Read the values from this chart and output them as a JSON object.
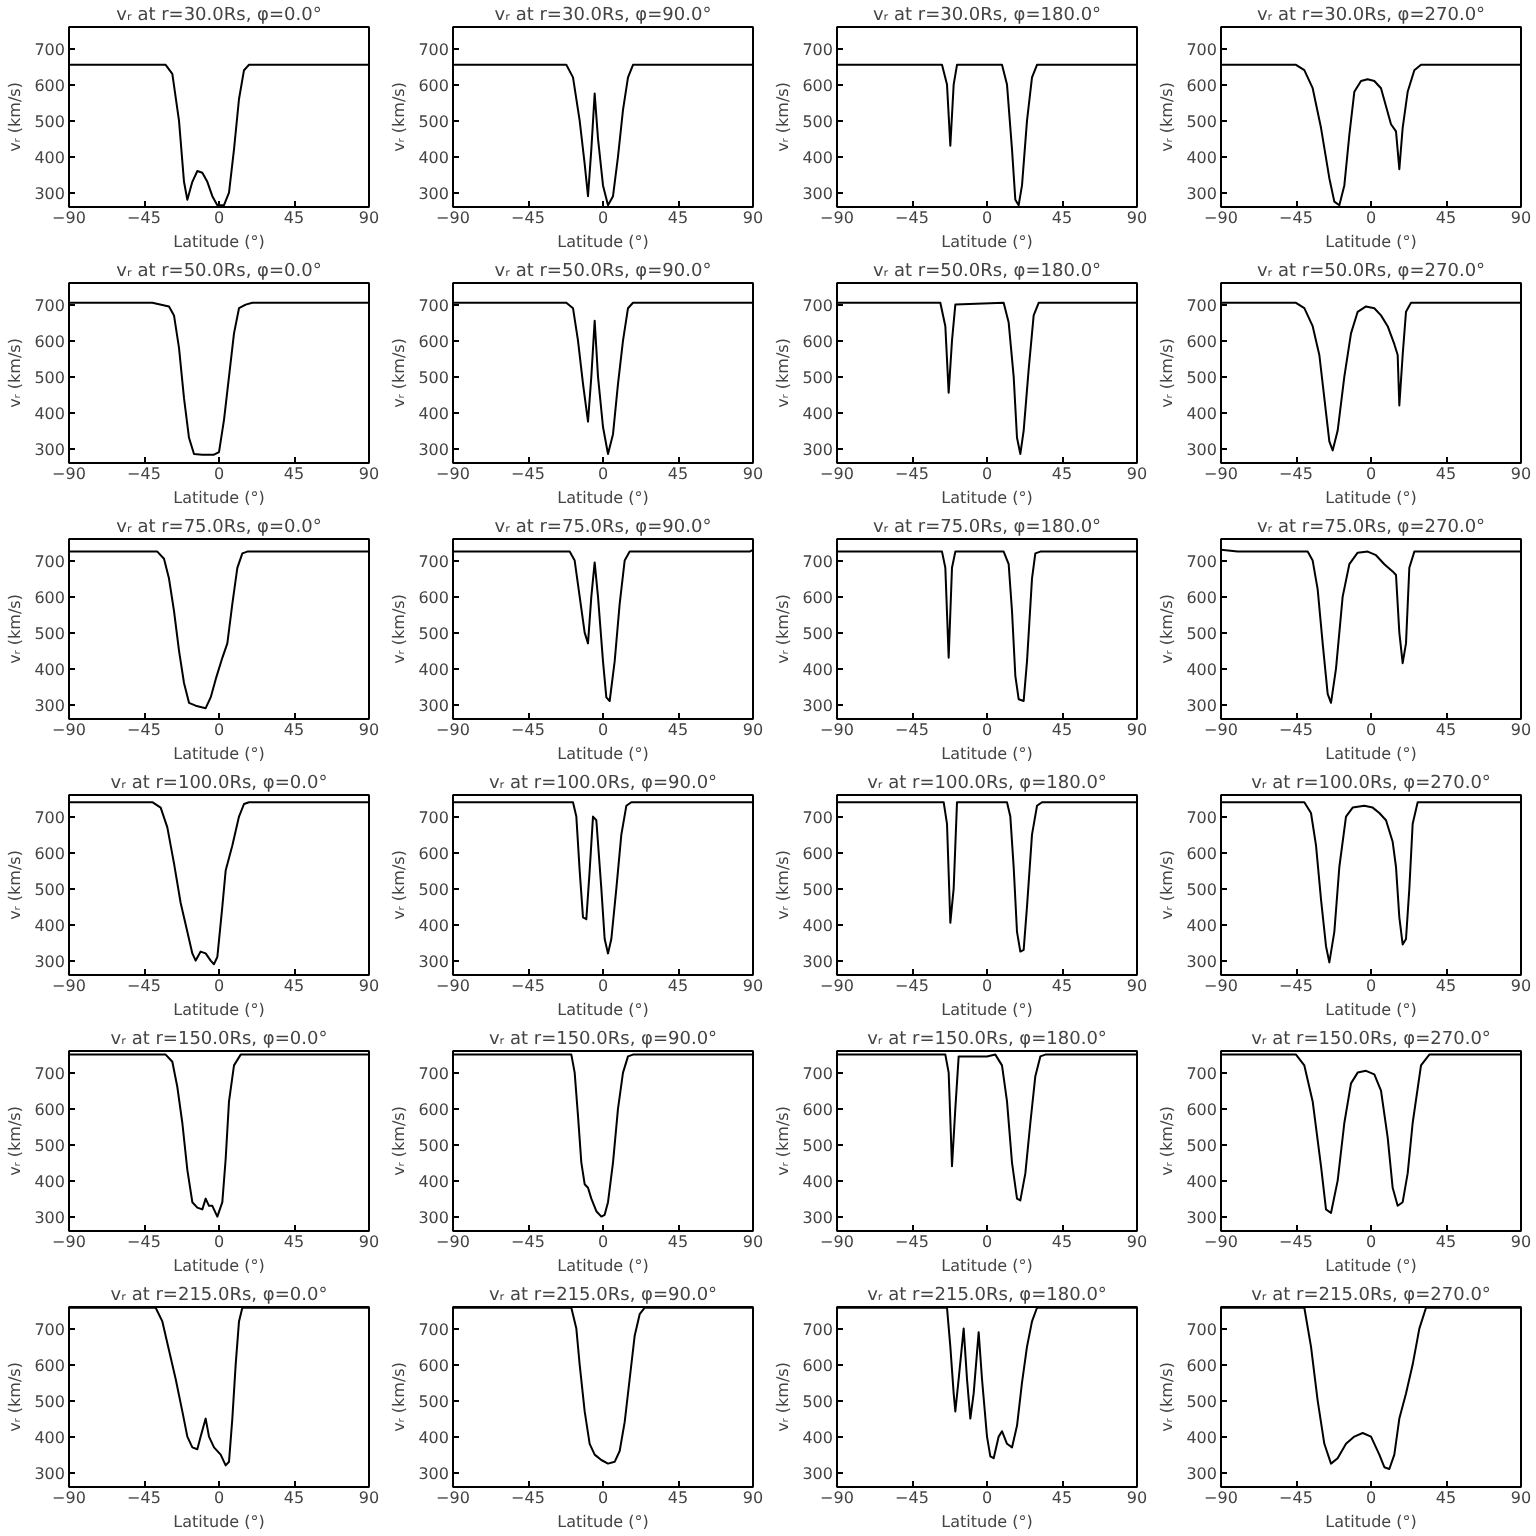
{
  "chart_data": [
    {
      "type": "line",
      "title": "vᵣ at r=30.0Rs, φ=0.0°",
      "xlabel": "Latitude (°)",
      "ylabel": "vᵣ (km/s)",
      "color": "#000000",
      "xlim": [
        -90,
        90
      ],
      "ylim": [
        260,
        760
      ],
      "xticks": [
        -90,
        -45,
        0,
        45,
        90
      ],
      "yticks": [
        300,
        400,
        500,
        600,
        700
      ],
      "x": [
        -90,
        -32,
        -28,
        -24,
        -21,
        -19,
        -16,
        -13,
        -10,
        -7,
        -4,
        -1,
        3,
        6,
        9,
        12,
        15,
        18,
        90
      ],
      "values": [
        655,
        655,
        630,
        500,
        330,
        280,
        330,
        360,
        355,
        330,
        290,
        265,
        265,
        300,
        420,
        560,
        640,
        655,
        655
      ]
    },
    {
      "type": "line",
      "title": "vᵣ at r=30.0Rs, φ=90.0°",
      "xlabel": "Latitude (°)",
      "ylabel": "vᵣ (km/s)",
      "color": "#000000",
      "xlim": [
        -90,
        90
      ],
      "ylim": [
        260,
        760
      ],
      "xticks": [
        -90,
        -45,
        0,
        45,
        90
      ],
      "yticks": [
        300,
        400,
        500,
        600,
        700
      ],
      "x": [
        -90,
        -22,
        -18,
        -14,
        -11,
        -9,
        -7,
        -5,
        -3,
        0,
        3,
        6,
        9,
        12,
        15,
        18,
        90
      ],
      "values": [
        655,
        655,
        620,
        500,
        380,
        290,
        420,
        575,
        450,
        320,
        265,
        290,
        400,
        530,
        620,
        655,
        655
      ]
    },
    {
      "type": "line",
      "title": "vᵣ at r=30.0Rs, φ=180.0°",
      "xlabel": "Latitude (°)",
      "ylabel": "vᵣ (km/s)",
      "color": "#000000",
      "xlim": [
        -90,
        90
      ],
      "ylim": [
        260,
        760
      ],
      "xticks": [
        -90,
        -45,
        0,
        45,
        90
      ],
      "yticks": [
        300,
        400,
        500,
        600,
        700
      ],
      "x": [
        -90,
        -27,
        -24,
        -22,
        -20,
        -18,
        9,
        12,
        15,
        17,
        19,
        21,
        24,
        27,
        30,
        90
      ],
      "values": [
        655,
        655,
        600,
        430,
        600,
        655,
        655,
        600,
        420,
        280,
        265,
        320,
        500,
        620,
        655,
        655
      ]
    },
    {
      "type": "line",
      "title": "vᵣ at r=30.0Rs, φ=270.0°",
      "xlabel": "Latitude (°)",
      "ylabel": "vᵣ (km/s)",
      "color": "#000000",
      "xlim": [
        -90,
        90
      ],
      "ylim": [
        260,
        760
      ],
      "xticks": [
        -90,
        -45,
        0,
        45,
        90
      ],
      "yticks": [
        300,
        400,
        500,
        600,
        700
      ],
      "x": [
        -90,
        -45,
        -40,
        -35,
        -30,
        -25,
        -22,
        -19,
        -16,
        -13,
        -10,
        -6,
        -2,
        2,
        6,
        9,
        12,
        15,
        17,
        19,
        22,
        26,
        30,
        90
      ],
      "values": [
        655,
        655,
        640,
        590,
        480,
        340,
        275,
        265,
        320,
        460,
        580,
        610,
        615,
        610,
        590,
        540,
        490,
        470,
        365,
        480,
        580,
        640,
        655,
        655
      ]
    },
    {
      "type": "line",
      "title": "vᵣ at r=50.0Rs, φ=0.0°",
      "xlabel": "Latitude (°)",
      "ylabel": "vᵣ (km/s)",
      "color": "#000000",
      "xlim": [
        -90,
        90
      ],
      "ylim": [
        260,
        760
      ],
      "xticks": [
        -90,
        -45,
        0,
        45,
        90
      ],
      "yticks": [
        300,
        400,
        500,
        600,
        700
      ],
      "x": [
        -90,
        -40,
        -30,
        -27,
        -24,
        -21,
        -18,
        -15,
        -10,
        -3,
        0,
        3,
        6,
        9,
        12,
        16,
        20,
        90
      ],
      "values": [
        705,
        705,
        695,
        670,
        580,
        440,
        330,
        285,
        283,
        283,
        290,
        380,
        500,
        620,
        690,
        700,
        705,
        705
      ]
    },
    {
      "type": "line",
      "title": "vᵣ at r=50.0Rs, φ=90.0°",
      "xlabel": "Latitude (°)",
      "ylabel": "vᵣ (km/s)",
      "color": "#000000",
      "xlim": [
        -90,
        90
      ],
      "ylim": [
        260,
        760
      ],
      "xticks": [
        -90,
        -45,
        0,
        45,
        90
      ],
      "yticks": [
        300,
        400,
        500,
        600,
        700
      ],
      "x": [
        -90,
        -22,
        -18,
        -15,
        -12,
        -9,
        -7,
        -5,
        -3,
        0,
        3,
        6,
        9,
        12,
        15,
        18,
        90
      ],
      "values": [
        705,
        705,
        690,
        600,
        480,
        375,
        500,
        655,
        500,
        360,
        285,
        340,
        480,
        600,
        690,
        705,
        705
      ]
    },
    {
      "type": "line",
      "title": "vᵣ at r=50.0Rs, φ=180.0°",
      "xlabel": "Latitude (°)",
      "ylabel": "vᵣ (km/s)",
      "color": "#000000",
      "xlim": [
        -90,
        90
      ],
      "ylim": [
        260,
        760
      ],
      "xticks": [
        -90,
        -45,
        0,
        45,
        90
      ],
      "yticks": [
        300,
        400,
        500,
        600,
        700
      ],
      "x": [
        -90,
        -28,
        -25,
        -23,
        -21,
        -19,
        10,
        13,
        16,
        18,
        20,
        22,
        25,
        28,
        31,
        90
      ],
      "values": [
        705,
        705,
        640,
        455,
        600,
        700,
        705,
        650,
        500,
        330,
        285,
        350,
        520,
        670,
        705,
        705
      ]
    },
    {
      "type": "line",
      "title": "vᵣ at r=50.0Rs, φ=270.0°",
      "xlabel": "Latitude (°)",
      "ylabel": "vᵣ (km/s)",
      "color": "#000000",
      "xlim": [
        -90,
        90
      ],
      "ylim": [
        260,
        760
      ],
      "xticks": [
        -90,
        -45,
        0,
        45,
        90
      ],
      "yticks": [
        300,
        400,
        500,
        600,
        700
      ],
      "x": [
        -90,
        -45,
        -40,
        -35,
        -31,
        -28,
        -25,
        -23,
        -20,
        -16,
        -12,
        -8,
        -3,
        2,
        6,
        10,
        14,
        16,
        17,
        19,
        21,
        24,
        90
      ],
      "values": [
        705,
        705,
        690,
        640,
        560,
        440,
        320,
        295,
        350,
        500,
        620,
        680,
        695,
        690,
        670,
        640,
        590,
        560,
        420,
        560,
        680,
        705,
        705
      ]
    },
    {
      "type": "line",
      "title": "vᵣ at r=75.0Rs, φ=0.0°",
      "xlabel": "Latitude (°)",
      "ylabel": "vᵣ (km/s)",
      "color": "#000000",
      "xlim": [
        -90,
        90
      ],
      "ylim": [
        260,
        760
      ],
      "xticks": [
        -90,
        -45,
        0,
        45,
        90
      ],
      "yticks": [
        300,
        400,
        500,
        600,
        700
      ],
      "x": [
        -90,
        -37,
        -33,
        -30,
        -27,
        -24,
        -21,
        -18,
        -14,
        -8,
        -5,
        -2,
        2,
        5,
        8,
        11,
        14,
        17,
        90
      ],
      "values": [
        725,
        725,
        705,
        650,
        560,
        450,
        360,
        305,
        297,
        290,
        320,
        370,
        430,
        470,
        580,
        680,
        720,
        725,
        725
      ]
    },
    {
      "type": "line",
      "title": "vᵣ at r=75.0Rs, φ=90.0°",
      "xlabel": "Latitude (°)",
      "ylabel": "vᵣ (km/s)",
      "color": "#000000",
      "xlim": [
        -90,
        90
      ],
      "ylim": [
        260,
        760
      ],
      "xticks": [
        -90,
        -45,
        0,
        45,
        90
      ],
      "yticks": [
        300,
        400,
        500,
        600,
        700
      ],
      "x": [
        -90,
        -20,
        -17,
        -14,
        -11,
        -9,
        -7,
        -5,
        -3,
        0,
        2,
        4,
        7,
        10,
        13,
        16,
        88,
        90
      ],
      "values": [
        725,
        725,
        700,
        600,
        500,
        470,
        600,
        695,
        600,
        420,
        320,
        310,
        420,
        580,
        700,
        725,
        725,
        730
      ]
    },
    {
      "type": "line",
      "title": "vᵣ at r=75.0Rs, φ=180.0°",
      "xlabel": "Latitude (°)",
      "ylabel": "vᵣ (km/s)",
      "color": "#000000",
      "xlim": [
        -90,
        90
      ],
      "ylim": [
        260,
        760
      ],
      "xticks": [
        -90,
        -45,
        0,
        45,
        90
      ],
      "yticks": [
        300,
        400,
        500,
        600,
        700
      ],
      "x": [
        -90,
        -27,
        -25,
        -23,
        -21,
        -19,
        10,
        13,
        15,
        17,
        19,
        22,
        24,
        27,
        29,
        32,
        90
      ],
      "values": [
        725,
        725,
        680,
        430,
        680,
        725,
        725,
        690,
        560,
        380,
        315,
        310,
        420,
        650,
        720,
        725,
        725
      ]
    },
    {
      "type": "line",
      "title": "vᵣ at r=75.0Rs, φ=270.0°",
      "xlabel": "Latitude (°)",
      "ylabel": "vᵣ (km/s)",
      "color": "#000000",
      "xlim": [
        -90,
        90
      ],
      "ylim": [
        260,
        760
      ],
      "xticks": [
        -90,
        -45,
        0,
        45,
        90
      ],
      "yticks": [
        300,
        400,
        500,
        600,
        700
      ],
      "x": [
        -90,
        -80,
        -38,
        -35,
        -32,
        -29,
        -26,
        -24,
        -21,
        -17,
        -13,
        -8,
        -2,
        3,
        8,
        13,
        15,
        17,
        19,
        21,
        23,
        26,
        90
      ],
      "values": [
        730,
        725,
        725,
        700,
        620,
        470,
        330,
        305,
        400,
        600,
        690,
        722,
        725,
        715,
        690,
        670,
        660,
        500,
        415,
        470,
        680,
        725,
        725
      ]
    },
    {
      "type": "line",
      "title": "vᵣ at r=100.0Rs, φ=0.0°",
      "xlabel": "Latitude (°)",
      "ylabel": "vᵣ (km/s)",
      "color": "#000000",
      "xlim": [
        -90,
        90
      ],
      "ylim": [
        260,
        760
      ],
      "xticks": [
        -90,
        -45,
        0,
        45,
        90
      ],
      "yticks": [
        300,
        400,
        500,
        600,
        700
      ],
      "x": [
        -90,
        -40,
        -35,
        -31,
        -27,
        -23,
        -19,
        -16,
        -14,
        -11,
        -8,
        -5,
        -3,
        -1,
        2,
        4,
        8,
        12,
        15,
        18,
        90
      ],
      "values": [
        740,
        740,
        725,
        670,
        570,
        460,
        380,
        320,
        300,
        325,
        320,
        300,
        290,
        310,
        450,
        550,
        620,
        700,
        735,
        740,
        740
      ]
    },
    {
      "type": "line",
      "title": "vᵣ at r=100.0Rs, φ=90.0°",
      "xlabel": "Latitude (°)",
      "ylabel": "vᵣ (km/s)",
      "color": "#000000",
      "xlim": [
        -90,
        90
      ],
      "ylim": [
        260,
        760
      ],
      "xticks": [
        -90,
        -45,
        0,
        45,
        90
      ],
      "yticks": [
        300,
        400,
        500,
        600,
        700
      ],
      "x": [
        -90,
        -18,
        -16,
        -14,
        -12,
        -10,
        -8,
        -6,
        -4,
        -1,
        1,
        3,
        5,
        8,
        11,
        14,
        17,
        90
      ],
      "values": [
        740,
        740,
        700,
        550,
        420,
        415,
        550,
        700,
        690,
        500,
        360,
        320,
        360,
        500,
        650,
        730,
        740,
        740
      ]
    },
    {
      "type": "line",
      "title": "vᵣ at r=100.0Rs, φ=180.0°",
      "xlabel": "Latitude (°)",
      "ylabel": "vᵣ (km/s)",
      "color": "#000000",
      "xlim": [
        -90,
        90
      ],
      "ylim": [
        260,
        760
      ],
      "xticks": [
        -90,
        -45,
        0,
        45,
        90
      ],
      "yticks": [
        300,
        400,
        500,
        600,
        700
      ],
      "x": [
        -90,
        -26,
        -24,
        -22,
        -20,
        -18,
        12,
        14,
        16,
        18,
        20,
        22,
        24,
        27,
        30,
        33,
        90
      ],
      "values": [
        740,
        740,
        680,
        405,
        500,
        740,
        740,
        700,
        560,
        380,
        325,
        330,
        450,
        650,
        730,
        740,
        740
      ]
    },
    {
      "type": "line",
      "title": "vᵣ at r=100.0Rs, φ=270.0°",
      "xlabel": "Latitude (°)",
      "ylabel": "vᵣ (km/s)",
      "color": "#000000",
      "xlim": [
        -90,
        90
      ],
      "ylim": [
        260,
        760
      ],
      "xticks": [
        -90,
        -45,
        0,
        45,
        90
      ],
      "yticks": [
        300,
        400,
        500,
        600,
        700
      ],
      "x": [
        -90,
        -40,
        -36,
        -33,
        -30,
        -27,
        -25,
        -22,
        -19,
        -15,
        -11,
        -4,
        1,
        5,
        9,
        13,
        15,
        17,
        19,
        21,
        23,
        25,
        28,
        90
      ],
      "values": [
        740,
        740,
        710,
        620,
        470,
        340,
        295,
        380,
        560,
        700,
        725,
        730,
        725,
        710,
        690,
        630,
        560,
        420,
        345,
        360,
        500,
        680,
        740,
        740
      ]
    },
    {
      "type": "line",
      "title": "vᵣ at r=150.0Rs, φ=0.0°",
      "xlabel": "Latitude (°)",
      "ylabel": "vᵣ (km/s)",
      "color": "#000000",
      "xlim": [
        -90,
        90
      ],
      "ylim": [
        260,
        760
      ],
      "xticks": [
        -90,
        -45,
        0,
        45,
        90
      ],
      "yticks": [
        300,
        400,
        500,
        600,
        700
      ],
      "x": [
        -90,
        -32,
        -28,
        -25,
        -22,
        -19,
        -16,
        -13,
        -10,
        -8,
        -6,
        -4,
        -1,
        2,
        4,
        6,
        9,
        13,
        90
      ],
      "values": [
        750,
        750,
        730,
        660,
        560,
        430,
        340,
        325,
        320,
        350,
        330,
        330,
        300,
        340,
        460,
        620,
        720,
        750,
        750
      ]
    },
    {
      "type": "line",
      "title": "vᵣ at r=150.0Rs, φ=90.0°",
      "xlabel": "Latitude (°)",
      "ylabel": "vᵣ (km/s)",
      "color": "#000000",
      "xlim": [
        -90,
        90
      ],
      "ylim": [
        260,
        760
      ],
      "xticks": [
        -90,
        -45,
        0,
        45,
        90
      ],
      "yticks": [
        300,
        400,
        500,
        600,
        700
      ],
      "x": [
        -90,
        -19,
        -17,
        -15,
        -13,
        -11,
        -9,
        -7,
        -4,
        -1,
        1,
        3,
        6,
        9,
        12,
        15,
        18,
        90
      ],
      "values": [
        750,
        750,
        700,
        580,
        450,
        390,
        380,
        350,
        315,
        300,
        305,
        340,
        450,
        600,
        700,
        745,
        750,
        750
      ]
    },
    {
      "type": "line",
      "title": "vᵣ at r=150.0Rs, φ=180.0°",
      "xlabel": "Latitude (°)",
      "ylabel": "vᵣ (km/s)",
      "color": "#000000",
      "xlim": [
        -90,
        90
      ],
      "ylim": [
        260,
        760
      ],
      "xticks": [
        -90,
        -45,
        0,
        45,
        90
      ],
      "yticks": [
        300,
        400,
        500,
        600,
        700
      ],
      "x": [
        -90,
        -25,
        -23,
        -21,
        -19,
        -17,
        0,
        5,
        9,
        12,
        15,
        18,
        20,
        23,
        26,
        29,
        32,
        35,
        90
      ],
      "values": [
        750,
        750,
        700,
        440,
        600,
        745,
        745,
        750,
        720,
        620,
        450,
        350,
        345,
        420,
        560,
        690,
        745,
        750,
        750
      ]
    },
    {
      "type": "line",
      "title": "vᵣ at r=150.0Rs, φ=270.0°",
      "xlabel": "Latitude (°)",
      "ylabel": "vᵣ (km/s)",
      "color": "#000000",
      "xlim": [
        -90,
        90
      ],
      "ylim": [
        260,
        760
      ],
      "xticks": [
        -90,
        -45,
        0,
        45,
        90
      ],
      "yticks": [
        300,
        400,
        500,
        600,
        700
      ],
      "x": [
        -90,
        -45,
        -40,
        -35,
        -30,
        -27,
        -24,
        -20,
        -16,
        -12,
        -8,
        -3,
        2,
        6,
        10,
        13,
        16,
        19,
        22,
        25,
        30,
        35,
        90
      ],
      "values": [
        750,
        750,
        720,
        620,
        440,
        320,
        310,
        400,
        560,
        670,
        700,
        705,
        695,
        650,
        520,
        380,
        330,
        340,
        420,
        560,
        720,
        750,
        750
      ]
    },
    {
      "type": "line",
      "title": "vᵣ at r=215.0Rs, φ=0.0°",
      "xlabel": "Latitude (°)",
      "ylabel": "vᵣ (km/s)",
      "color": "#000000",
      "xlim": [
        -90,
        90
      ],
      "ylim": [
        260,
        760
      ],
      "xticks": [
        -90,
        -45,
        0,
        45,
        90
      ],
      "yticks": [
        300,
        400,
        500,
        600,
        700
      ],
      "x": [
        -90,
        -38,
        -34,
        -30,
        -26,
        -22,
        -19,
        -16,
        -13,
        -11,
        -8,
        -6,
        -3,
        1,
        4,
        6,
        8,
        10,
        12,
        14,
        90
      ],
      "values": [
        758,
        758,
        720,
        640,
        560,
        470,
        400,
        370,
        365,
        400,
        450,
        400,
        370,
        350,
        320,
        330,
        450,
        600,
        720,
        758,
        758
      ]
    },
    {
      "type": "line",
      "title": "vᵣ at r=215.0Rs, φ=90.0°",
      "xlabel": "Latitude (°)",
      "ylabel": "vᵣ (km/s)",
      "color": "#000000",
      "xlim": [
        -90,
        90
      ],
      "ylim": [
        260,
        760
      ],
      "xticks": [
        -90,
        -45,
        0,
        45,
        90
      ],
      "yticks": [
        300,
        400,
        500,
        600,
        700
      ],
      "x": [
        -90,
        -19,
        -16,
        -14,
        -11,
        -8,
        -5,
        -1,
        3,
        7,
        10,
        13,
        16,
        19,
        22,
        25,
        90
      ],
      "values": [
        758,
        758,
        700,
        600,
        470,
        380,
        350,
        335,
        325,
        330,
        360,
        440,
        560,
        680,
        740,
        758,
        758
      ]
    },
    {
      "type": "line",
      "title": "vᵣ at r=215.0Rs, φ=180.0°",
      "xlabel": "Latitude (°)",
      "ylabel": "vᵣ (km/s)",
      "color": "#000000",
      "xlim": [
        -90,
        90
      ],
      "ylim": [
        260,
        760
      ],
      "xticks": [
        -90,
        -45,
        0,
        45,
        90
      ],
      "yticks": [
        300,
        400,
        500,
        600,
        700
      ],
      "x": [
        -90,
        -24,
        -22,
        -20,
        -19,
        -17,
        -14,
        -12,
        -10,
        -8,
        -5,
        -3,
        0,
        2,
        4,
        7,
        9,
        12,
        15,
        18,
        21,
        24,
        27,
        30,
        90
      ],
      "values": [
        758,
        758,
        650,
        520,
        470,
        560,
        700,
        560,
        450,
        520,
        690,
        560,
        400,
        345,
        340,
        400,
        415,
        380,
        370,
        430,
        550,
        650,
        720,
        758,
        758
      ]
    },
    {
      "type": "line",
      "title": "vᵣ at r=215.0Rs, φ=270.0°",
      "xlabel": "Latitude (°)",
      "ylabel": "vᵣ (km/s)",
      "color": "#000000",
      "xlim": [
        -90,
        90
      ],
      "ylim": [
        260,
        760
      ],
      "xticks": [
        -90,
        -45,
        0,
        45,
        90
      ],
      "yticks": [
        300,
        400,
        500,
        600,
        700
      ],
      "x": [
        -90,
        -40,
        -36,
        -32,
        -28,
        -24,
        -20,
        -15,
        -10,
        -5,
        0,
        5,
        8,
        11,
        14,
        17,
        21,
        25,
        29,
        33,
        90
      ],
      "values": [
        758,
        758,
        650,
        500,
        380,
        325,
        340,
        380,
        400,
        410,
        400,
        350,
        315,
        310,
        350,
        450,
        520,
        600,
        700,
        758,
        758
      ]
    }
  ]
}
